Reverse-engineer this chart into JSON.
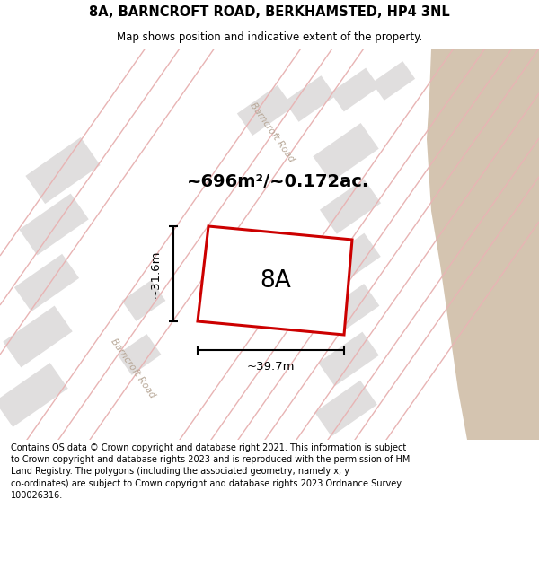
{
  "title_line1": "8A, BARNCROFT ROAD, BERKHAMSTED, HP4 3NL",
  "title_line2": "Map shows position and indicative extent of the property.",
  "area_label": "~696m²/~0.172ac.",
  "property_label": "8A",
  "dim_width": "~39.7m",
  "dim_height": "~31.6m",
  "footer_text": "Contains OS data © Crown copyright and database right 2021. This information is subject to Crown copyright and database rights 2023 and is reproduced with the permission of HM Land Registry. The polygons (including the associated geometry, namely x, y co-ordinates) are subject to Crown copyright and database rights 2023 Ordnance Survey 100026316.",
  "bg_color": "#f5f0eb",
  "map_bg": "#ffffff",
  "road_color_light": "#e8b4b4",
  "property_outline_color": "#cc0000",
  "building_fill": "#e0dede",
  "tan_area_color": "#d4c4b0",
  "road_label_color": "#b8a898"
}
